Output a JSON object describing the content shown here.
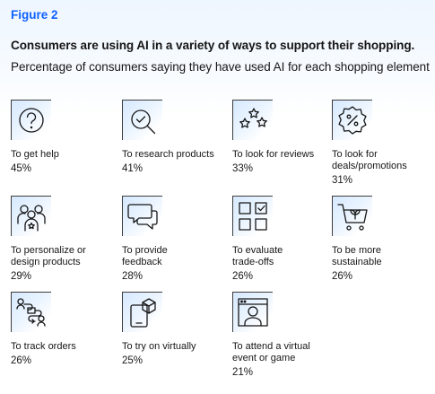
{
  "figure_label": "Figure 2",
  "chart_data": {
    "type": "table",
    "title": "Consumers are using AI in a variety of ways to support their shopping.",
    "subtitle": "Percentage of consumers saying they have used AI for each shopping element",
    "items": [
      {
        "label": "To get help",
        "value_text": "45%",
        "value": 45,
        "icon": "question-icon"
      },
      {
        "label": "To research products",
        "value_text": "41%",
        "value": 41,
        "icon": "magnifier-check-icon"
      },
      {
        "label": "To look for reviews",
        "value_text": "33%",
        "value": 33,
        "icon": "stars-icon"
      },
      {
        "label": "To look for\ndeals/promotions",
        "value_text": "31%",
        "value": 31,
        "icon": "percent-badge-icon"
      },
      {
        "label": "To personalize or\ndesign products",
        "value_text": "29%",
        "value": 29,
        "icon": "people-star-icon"
      },
      {
        "label": "To provide\nfeedback",
        "value_text": "28%",
        "value": 28,
        "icon": "chat-bubbles-icon"
      },
      {
        "label": "To evaluate\ntrade-offs",
        "value_text": "26%",
        "value": 26,
        "icon": "grid-check-icon"
      },
      {
        "label": "To be more\nsustainable",
        "value_text": "26%",
        "value": 26,
        "icon": "cart-leaf-icon"
      },
      {
        "label": "To track orders",
        "value_text": "26%",
        "value": 26,
        "icon": "route-icon"
      },
      {
        "label": "To try on virtually",
        "value_text": "25%",
        "value": 25,
        "icon": "phone-cube-icon"
      },
      {
        "label": "To attend a virtual\nevent or game",
        "value_text": "21%",
        "value": 21,
        "icon": "browser-person-icon"
      }
    ]
  }
}
